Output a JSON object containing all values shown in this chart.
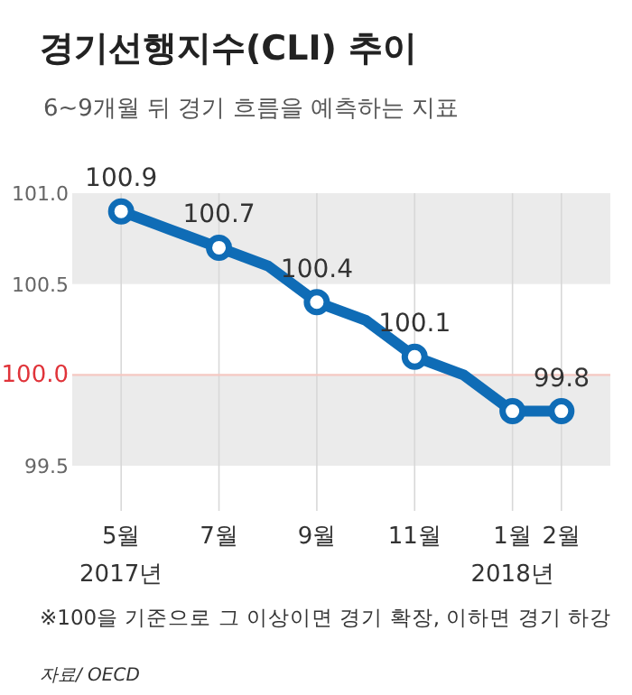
{
  "chart_data": {
    "type": "line",
    "title": "경기선행지수(CLI) 추이",
    "subtitle": "6~9개월 뒤 경기 흐름을 예측하는 지표",
    "x": [
      "2017-05",
      "2017-06",
      "2017-07",
      "2017-08",
      "2017-09",
      "2017-10",
      "2017-11",
      "2017-12",
      "2018-01",
      "2018-02"
    ],
    "series": [
      {
        "color": "#0f6cb6",
        "values": [
          100.9,
          100.8,
          100.7,
          100.6,
          100.4,
          100.3,
          100.1,
          100.0,
          99.8,
          99.8
        ],
        "value_labels": [
          "100.9",
          null,
          "100.7",
          null,
          "100.4",
          null,
          "100.1",
          null,
          null,
          "99.8"
        ]
      }
    ],
    "xlim": [
      "2017-04",
      "2018-03"
    ],
    "xticks": [
      {
        "value": "2017-05",
        "label": "5월\n2017년"
      },
      {
        "value": "2017-07",
        "label": "7월"
      },
      {
        "value": "2017-09",
        "label": "9월"
      },
      {
        "value": "2017-11",
        "label": "11월"
      },
      {
        "value": "2018-01",
        "label": "1월\n2018년"
      },
      {
        "value": "2018-02",
        "label": "2월"
      }
    ],
    "ylim": [
      99.5,
      101.0
    ],
    "yticks": [
      {
        "value": 99.5,
        "label": "99.5"
      },
      {
        "value": 100.0,
        "label": "100.0"
      },
      {
        "value": 100.5,
        "label": "100.5"
      },
      {
        "value": 101.0,
        "label": "101.0"
      }
    ],
    "grid": "x",
    "marker": "circle",
    "bands": [
      {
        "axis": "y",
        "from": 100.5,
        "to": 101.0,
        "color": "#ebebeb"
      },
      {
        "axis": "y",
        "from": 99.5,
        "to": 100.0,
        "color": "#ebebeb"
      }
    ],
    "ref_lines": [
      {
        "axis": "y",
        "value": 100.0,
        "color": "#f5c8c2"
      }
    ],
    "annotations": [
      "※100을 기준으로 그 이상이면 경기 확장, 이하면 경기 하강",
      "자료/ OECD"
    ]
  }
}
